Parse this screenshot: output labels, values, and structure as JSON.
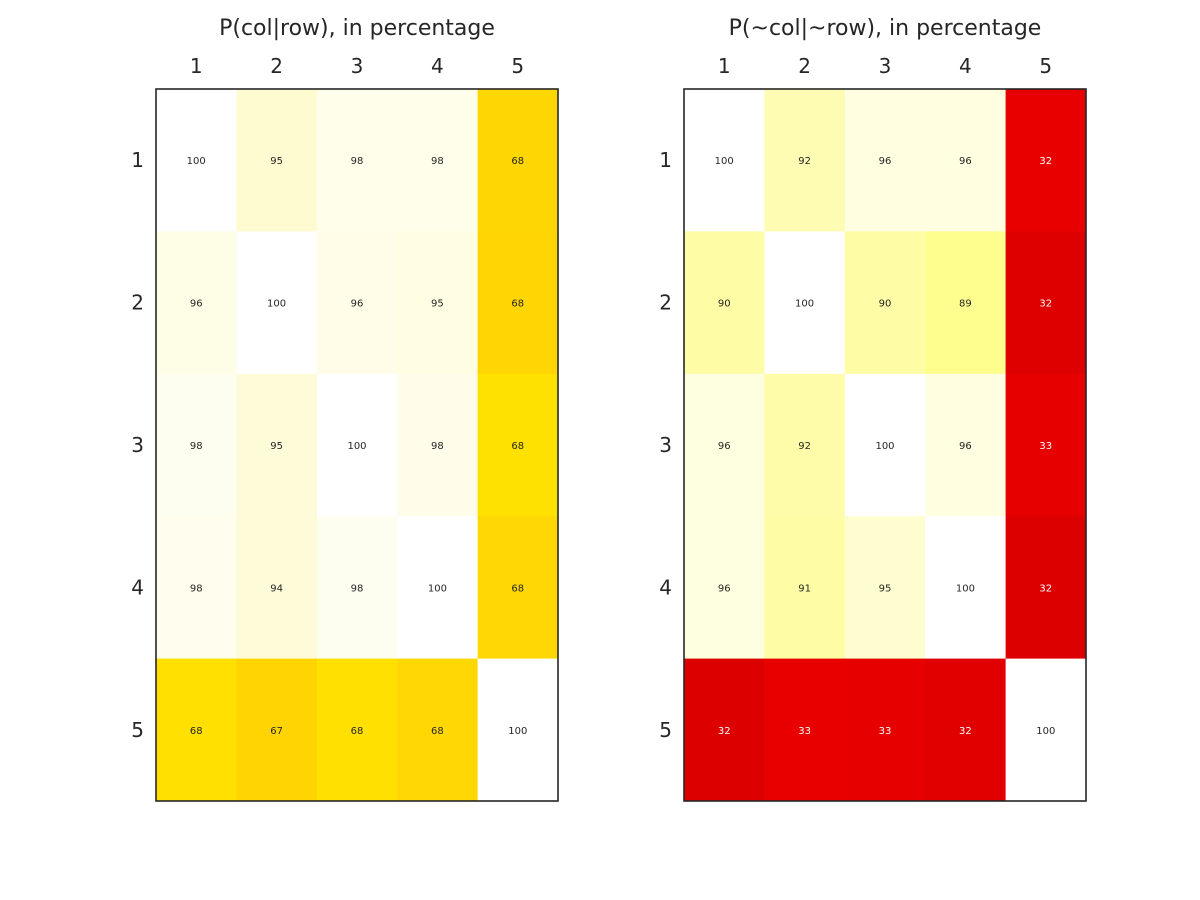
{
  "chart_data": [
    {
      "type": "heatmap",
      "title": "P(col|row), in percentage",
      "xlabel": "",
      "ylabel": "",
      "x_ticks": [
        "1",
        "2",
        "3",
        "4",
        "5"
      ],
      "y_ticks": [
        "1",
        "2",
        "3",
        "4",
        "5"
      ],
      "colormap": "white-to-yellow",
      "values": [
        [
          100,
          95,
          98,
          98,
          68
        ],
        [
          96,
          100,
          96,
          95,
          68
        ],
        [
          98,
          95,
          100,
          98,
          68
        ],
        [
          98,
          94,
          98,
          100,
          68
        ],
        [
          68,
          67,
          68,
          68,
          100
        ]
      ],
      "cell_colors": [
        [
          "#ffffff",
          "#fefbd0",
          "#fffeeb",
          "#fffeea",
          "#fed601"
        ],
        [
          "#fefde6",
          "#ffffff",
          "#fffde7",
          "#fffde2",
          "#ffd604"
        ],
        [
          "#fefef0",
          "#fefbd9",
          "#ffffff",
          "#fffdea",
          "#ffe100"
        ],
        [
          "#fffeee",
          "#fefbd8",
          "#fefef0",
          "#ffffff",
          "#ffd704"
        ],
        [
          "#ffe000",
          "#ffd400",
          "#ffe000",
          "#ffd803",
          "#ffffff"
        ]
      ]
    },
    {
      "type": "heatmap",
      "title": "P(~col|~row), in percentage",
      "xlabel": "",
      "ylabel": "",
      "x_ticks": [
        "1",
        "2",
        "3",
        "4",
        "5"
      ],
      "y_ticks": [
        "1",
        "2",
        "3",
        "4",
        "5"
      ],
      "colormap": "white-to-yellow-to-red",
      "values": [
        [
          100,
          92,
          96,
          96,
          32
        ],
        [
          90,
          100,
          90,
          89,
          32
        ],
        [
          96,
          92,
          100,
          96,
          33
        ],
        [
          96,
          91,
          95,
          100,
          32
        ],
        [
          32,
          33,
          33,
          32,
          100
        ]
      ],
      "cell_colors": [
        [
          "#ffffff",
          "#fefcb3",
          "#fffee0",
          "#fffee0",
          "#e80000"
        ],
        [
          "#fefca5",
          "#ffffff",
          "#fefca5",
          "#fefe8e",
          "#de0000"
        ],
        [
          "#fefee0",
          "#fefca8",
          "#ffffff",
          "#fffee0",
          "#e60000"
        ],
        [
          "#fefee0",
          "#fefda6",
          "#fefdd0",
          "#ffffff",
          "#dc0000"
        ],
        [
          "#dc0000",
          "#e80000",
          "#e60000",
          "#e00000",
          "#ffffff"
        ]
      ]
    }
  ]
}
